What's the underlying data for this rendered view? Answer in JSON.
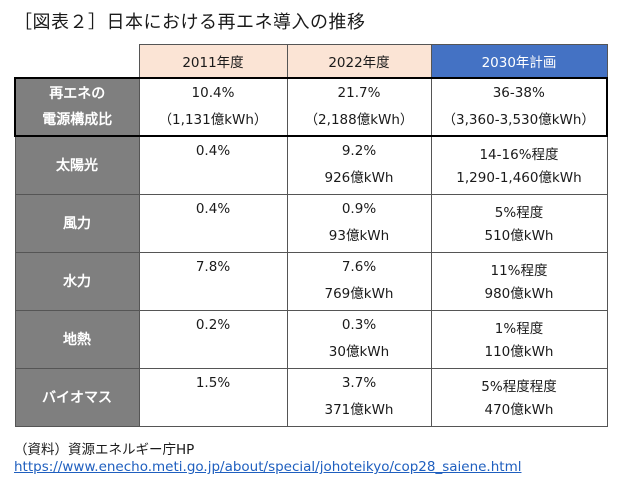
{
  "title": "［図表２］日本における再エネ導入の推移",
  "columns": [
    "2011年度",
    "2022年度",
    "2030年計画"
  ],
  "rows": [
    {
      "label1": "再エネの",
      "label2": "電源構成比",
      "c1a": "10.4%",
      "c1b": "（1,131億kWh）",
      "c2a": "21.7%",
      "c2b": "（2,188億kWh）",
      "c3a": "36-38%",
      "c3b": "（3,360-3,530億kWh）"
    },
    {
      "label1": "太陽光",
      "label2": "",
      "c1a": "0.4%",
      "c1b": "",
      "c2a": "9.2%",
      "c2b": "926億kWh",
      "c3a": "14-16%程度",
      "c3b": "1,290-1,460億kWh"
    },
    {
      "label1": "風力",
      "label2": "",
      "c1a": "0.4%",
      "c1b": "",
      "c2a": "0.9%",
      "c2b": "93億kWh",
      "c3a": "5%程度",
      "c3b": "510億kWh"
    },
    {
      "label1": "水力",
      "label2": "",
      "c1a": "7.8%",
      "c1b": "",
      "c2a": "7.6%",
      "c2b": "769億kWh",
      "c3a": "11%程度",
      "c3b": "980億kWh"
    },
    {
      "label1": "地熱",
      "label2": "",
      "c1a": "0.2%",
      "c1b": "",
      "c2a": "0.3%",
      "c2b": "30億kWh",
      "c3a": "1%程度",
      "c3b": "110億kWh"
    },
    {
      "label1": "バイオマス",
      "label2": "",
      "c1a": "1.5%",
      "c1b": "",
      "c2a": "3.7%",
      "c2b": "371億kWh",
      "c3a": "5%程度程度",
      "c3b": "470億kWh"
    }
  ],
  "source": "（資料）資源エネルギー庁HP",
  "link": "https://www.enecho.meti.go.jp/about/special/johoteikyo/cop28_saiene.html"
}
